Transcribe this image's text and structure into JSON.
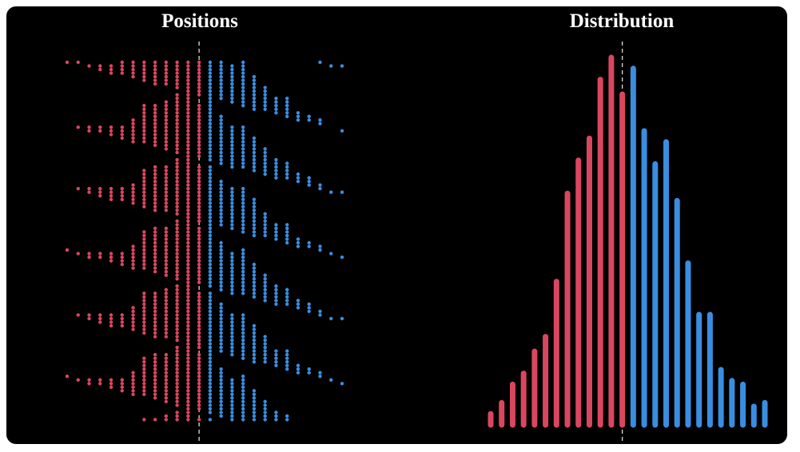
{
  "chart_data": {
    "type": "walk",
    "titles": [
      "Positions",
      "Distribution"
    ],
    "positions": [
      -12,
      -11,
      -10,
      -9,
      -8,
      -7,
      -6,
      -5,
      -4,
      -3,
      -2,
      -1,
      0,
      1,
      2,
      3,
      4,
      5,
      6,
      7,
      8,
      9,
      10,
      11,
      12,
      13
    ],
    "counts": [
      3,
      6,
      11,
      14,
      20,
      24,
      39,
      63,
      72,
      78,
      94,
      100,
      90,
      97,
      80,
      71,
      77,
      61,
      44,
      30,
      30,
      15,
      12,
      11,
      5,
      6
    ],
    "xlim": [
      -12,
      13
    ],
    "ylim": [
      0,
      100
    ],
    "colors": {
      "negative": "#d9475f",
      "positive": "#3a8ee0"
    }
  }
}
